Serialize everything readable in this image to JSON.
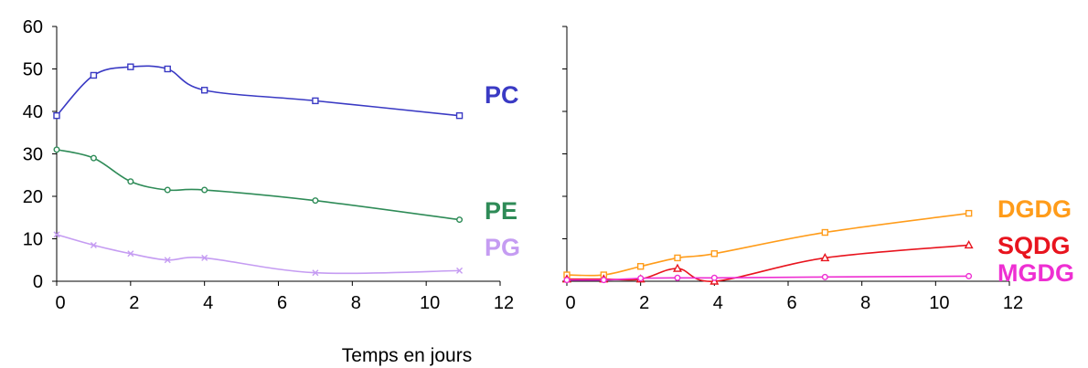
{
  "chart_data": [
    {
      "type": "line",
      "xlabel": "",
      "ylabel": "",
      "xlim": [
        0,
        12
      ],
      "ylim": [
        0,
        60
      ],
      "xticks": [
        0,
        2,
        4,
        6,
        8,
        10,
        12
      ],
      "yticks": [
        0,
        10,
        20,
        30,
        40,
        50,
        60
      ],
      "grid": false,
      "legend": "inline-right",
      "series": [
        {
          "name": "PC",
          "color": "#3a3ac4",
          "marker": "square",
          "x": [
            0,
            1,
            2,
            3,
            4,
            7,
            10.9
          ],
          "y": [
            39,
            48.5,
            50.5,
            50,
            45,
            42.5,
            39
          ]
        },
        {
          "name": "PE",
          "color": "#2e8b57",
          "marker": "circle",
          "x": [
            0,
            1,
            2,
            3,
            4,
            7,
            10.9
          ],
          "y": [
            31,
            29,
            23.5,
            21.5,
            21.5,
            19,
            14.5
          ]
        },
        {
          "name": "PG",
          "color": "#c59cf2",
          "marker": "x",
          "x": [
            0,
            1,
            2,
            3,
            4,
            7,
            10.9
          ],
          "y": [
            11,
            8.5,
            6.5,
            5,
            5.5,
            2,
            2.5
          ]
        }
      ]
    },
    {
      "type": "line",
      "xlabel": "",
      "ylabel": "",
      "xlim": [
        0,
        12
      ],
      "ylim": [
        0,
        60
      ],
      "xticks": [
        0,
        2,
        4,
        6,
        8,
        10,
        12
      ],
      "yticks": [
        0,
        10,
        20,
        30,
        40,
        50,
        60
      ],
      "grid": false,
      "legend": "inline-right",
      "series": [
        {
          "name": "DGDG",
          "color": "#ff9c1a",
          "marker": "square",
          "x": [
            0,
            1,
            2,
            3,
            4,
            7,
            10.9
          ],
          "y": [
            1.5,
            1.5,
            3.5,
            5.5,
            6.5,
            11.5,
            16
          ]
        },
        {
          "name": "SQDG",
          "color": "#e8141e",
          "marker": "triangle",
          "x": [
            0,
            1,
            2,
            3,
            4,
            7,
            10.9
          ],
          "y": [
            0.5,
            0.5,
            0.5,
            3,
            0,
            5.5,
            8.5
          ]
        },
        {
          "name": "MGDG",
          "color": "#ee2fd2",
          "marker": "circle",
          "x": [
            0,
            1,
            2,
            3,
            4,
            7,
            10.9
          ],
          "y": [
            0.3,
            0.3,
            0.7,
            0.8,
            0.8,
            1,
            1.2
          ]
        }
      ]
    }
  ],
  "shared_xlabel": "Temps en jours"
}
